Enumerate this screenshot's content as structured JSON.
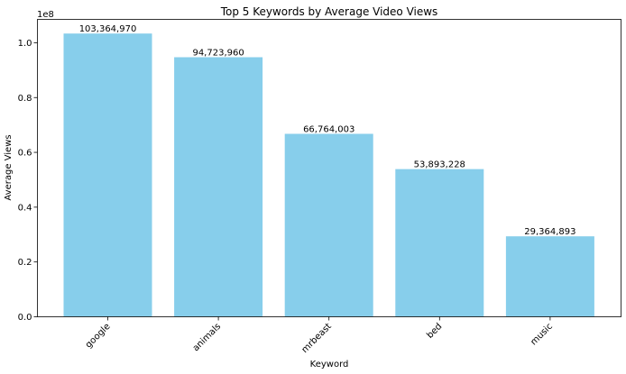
{
  "chart_data": {
    "type": "bar",
    "title": "Top 5 Keywords by Average Video Views",
    "xlabel": "Keyword",
    "ylabel": "Average Views",
    "y_offset_label": "1e8",
    "categories": [
      "google",
      "animals",
      "mrbeast",
      "bed",
      "music"
    ],
    "values": [
      103364970,
      94723960,
      66764003,
      53893228,
      29364893
    ],
    "data_labels": [
      "103,364,970",
      "94,723,960",
      "66,764,003",
      "53,893,228",
      "29,364,893"
    ],
    "y_ticks": [
      0,
      20000000,
      40000000,
      60000000,
      80000000,
      100000000
    ],
    "y_tick_labels": [
      "0.0",
      "0.2",
      "0.4",
      "0.6",
      "0.8",
      "1.0"
    ],
    "ylim": [
      0,
      108533218.5
    ],
    "grid": false,
    "legend": "none",
    "bar_color": "#87CEEB"
  }
}
